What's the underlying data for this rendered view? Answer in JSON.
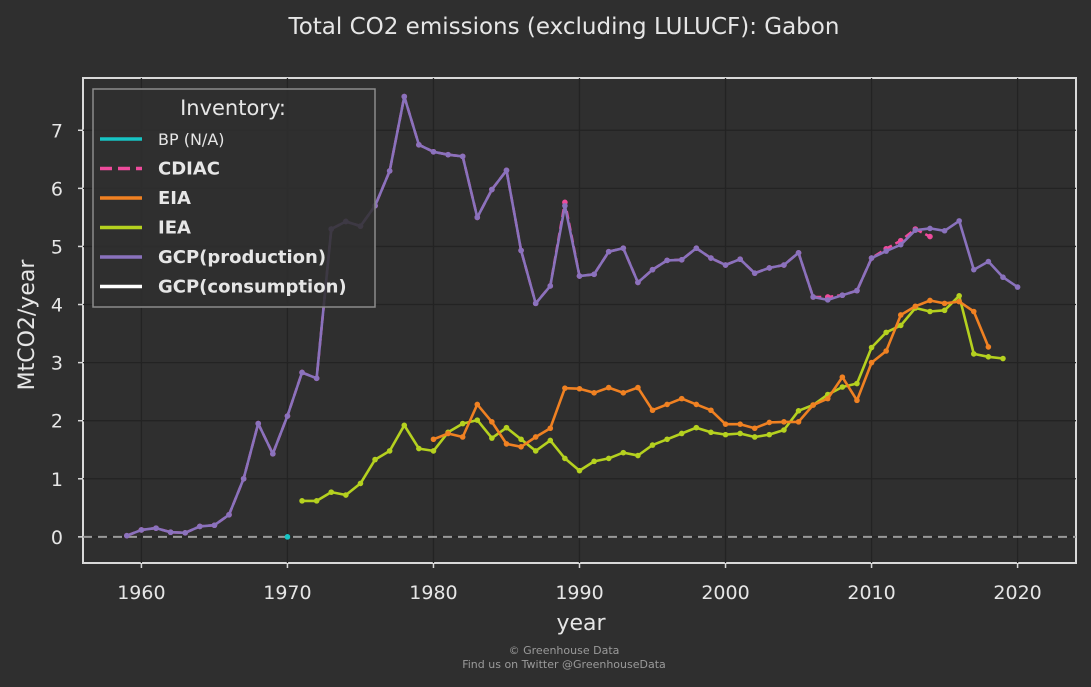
{
  "chart_data": {
    "type": "line",
    "title": "Total CO2 emissions (excluding LULUCF): Gabon",
    "xlabel": "year",
    "ylabel": "MtCO2/year",
    "xlim": [
      1956,
      2024
    ],
    "ylim": [
      -0.45,
      7.9
    ],
    "xticks": [
      1960,
      1970,
      1980,
      1990,
      2000,
      2010,
      2020
    ],
    "yticks": [
      0,
      1,
      2,
      3,
      4,
      5,
      6,
      7
    ],
    "grid": true,
    "legend_position": "top-left",
    "legend_title": "Inventory:",
    "credit_line1": "© Greenhouse Data",
    "credit_line2": "Find us on Twitter @GreenhouseData",
    "reference_line": {
      "y": 0,
      "style": "dashed",
      "color": "#9a9a9a"
    },
    "series": [
      {
        "name": "BP (N/A)",
        "color": "#17c4c4",
        "style": "solid",
        "x": [
          1970
        ],
        "y": [
          0
        ]
      },
      {
        "name": "CDIAC",
        "color": "#ee4b9c",
        "style": "dashed",
        "x": [
          1959,
          1960,
          1961,
          1962,
          1963,
          1964,
          1965,
          1966,
          1967,
          1968,
          1969,
          1970,
          1971,
          1972,
          1973,
          1974,
          1975,
          1976,
          1977,
          1978,
          1979,
          1980,
          1981,
          1982,
          1983,
          1984,
          1985,
          1986,
          1987,
          1988,
          1989,
          1990,
          1991,
          1992,
          1993,
          1994,
          1995,
          1996,
          1997,
          1998,
          1999,
          2000,
          2001,
          2002,
          2003,
          2004,
          2005,
          2006,
          2007,
          2008,
          2009,
          2010,
          2011,
          2012,
          2013,
          2014
        ],
        "y": [
          0.02,
          0.12,
          0.15,
          0.08,
          0.07,
          0.18,
          0.2,
          0.38,
          1.0,
          1.95,
          1.43,
          2.08,
          2.83,
          2.73,
          5.3,
          5.43,
          5.35,
          5.7,
          6.3,
          7.58,
          6.75,
          6.63,
          6.58,
          6.55,
          5.5,
          5.98,
          6.31,
          4.93,
          4.02,
          4.32,
          5.76,
          4.49,
          4.52,
          4.91,
          4.97,
          4.38,
          4.6,
          4.76,
          4.77,
          4.97,
          4.8,
          4.68,
          4.78,
          4.54,
          4.63,
          4.68,
          4.89,
          4.13,
          4.13,
          4.16,
          4.24,
          4.8,
          4.96,
          5.1,
          5.3,
          5.17
        ]
      },
      {
        "name": "EIA",
        "color": "#f08122",
        "style": "solid",
        "x": [
          1980,
          1981,
          1982,
          1983,
          1984,
          1985,
          1986,
          1987,
          1988,
          1989,
          1990,
          1991,
          1992,
          1993,
          1994,
          1995,
          1996,
          1997,
          1998,
          1999,
          2000,
          2001,
          2002,
          2003,
          2004,
          2005,
          2006,
          2007,
          2008,
          2009,
          2010,
          2011,
          2012,
          2013,
          2014,
          2015,
          2016,
          2017,
          2018
        ],
        "y": [
          1.68,
          1.78,
          1.72,
          2.28,
          1.98,
          1.6,
          1.55,
          1.72,
          1.87,
          2.56,
          2.55,
          2.48,
          2.57,
          2.48,
          2.57,
          2.18,
          2.28,
          2.38,
          2.28,
          2.18,
          1.94,
          1.94,
          1.87,
          1.97,
          1.98,
          1.98,
          2.27,
          2.38,
          2.75,
          2.35,
          3.0,
          3.2,
          3.82,
          3.97,
          4.07,
          4.02,
          4.05,
          3.88,
          3.27
        ]
      },
      {
        "name": "IEA",
        "color": "#b5d11f",
        "style": "solid",
        "x": [
          1971,
          1972,
          1973,
          1974,
          1975,
          1976,
          1977,
          1978,
          1979,
          1980,
          1981,
          1982,
          1983,
          1984,
          1985,
          1986,
          1987,
          1988,
          1989,
          1990,
          1991,
          1992,
          1993,
          1994,
          1995,
          1996,
          1997,
          1998,
          1999,
          2000,
          2001,
          2002,
          2003,
          2004,
          2005,
          2006,
          2007,
          2008,
          2009,
          2010,
          2011,
          2012,
          2013,
          2014,
          2015,
          2016,
          2017,
          2018,
          2019
        ],
        "y": [
          0.62,
          0.62,
          0.77,
          0.72,
          0.92,
          1.33,
          1.48,
          1.92,
          1.52,
          1.48,
          1.8,
          1.95,
          2.01,
          1.7,
          1.88,
          1.68,
          1.48,
          1.66,
          1.35,
          1.14,
          1.3,
          1.35,
          1.45,
          1.4,
          1.58,
          1.68,
          1.78,
          1.88,
          1.8,
          1.76,
          1.78,
          1.72,
          1.76,
          1.84,
          2.17,
          2.27,
          2.45,
          2.58,
          2.64,
          3.26,
          3.52,
          3.64,
          3.94,
          3.88,
          3.9,
          4.15,
          3.15,
          3.1,
          3.07
        ]
      },
      {
        "name": "GCP(production)",
        "color": "#8a72bd",
        "style": "solid",
        "x": [
          1959,
          1960,
          1961,
          1962,
          1963,
          1964,
          1965,
          1966,
          1967,
          1968,
          1969,
          1970,
          1971,
          1972,
          1973,
          1974,
          1975,
          1976,
          1977,
          1978,
          1979,
          1980,
          1981,
          1982,
          1983,
          1984,
          1985,
          1986,
          1987,
          1988,
          1989,
          1990,
          1991,
          1992,
          1993,
          1994,
          1995,
          1996,
          1997,
          1998,
          1999,
          2000,
          2001,
          2002,
          2003,
          2004,
          2005,
          2006,
          2007,
          2008,
          2009,
          2010,
          2011,
          2012,
          2013,
          2014,
          2015,
          2016,
          2017,
          2018,
          2019,
          2020
        ],
        "y": [
          0.02,
          0.12,
          0.15,
          0.08,
          0.07,
          0.18,
          0.2,
          0.38,
          1.0,
          1.95,
          1.43,
          2.08,
          2.83,
          2.73,
          5.3,
          5.43,
          5.35,
          5.7,
          6.3,
          7.58,
          6.75,
          6.63,
          6.58,
          6.55,
          5.5,
          5.98,
          6.31,
          4.93,
          4.02,
          4.32,
          5.7,
          4.49,
          4.52,
          4.91,
          4.97,
          4.38,
          4.6,
          4.76,
          4.77,
          4.97,
          4.8,
          4.68,
          4.78,
          4.54,
          4.63,
          4.68,
          4.89,
          4.13,
          4.08,
          4.16,
          4.24,
          4.8,
          4.92,
          5.03,
          5.28,
          5.31,
          5.27,
          5.44,
          4.6,
          4.74,
          4.47,
          4.3
        ]
      },
      {
        "name": "GCP(consumption)",
        "color": "#ffffff",
        "style": "solid",
        "x": [],
        "y": []
      }
    ]
  }
}
